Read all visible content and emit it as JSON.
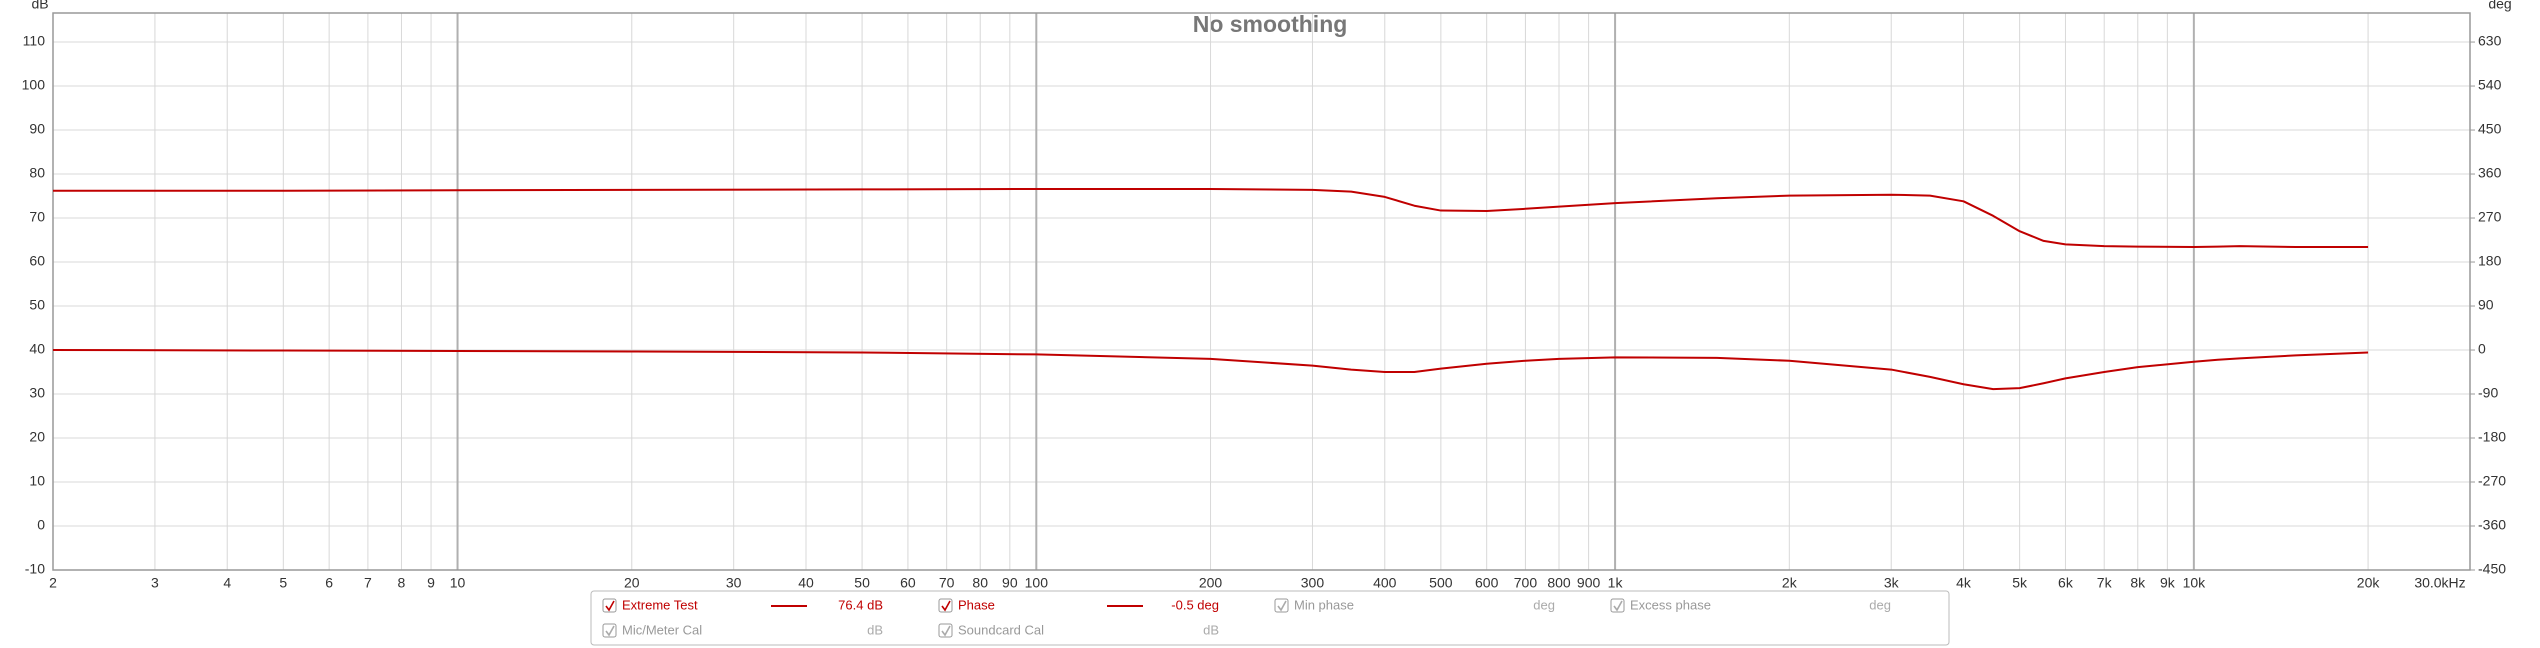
{
  "chart_data": {
    "type": "line",
    "title": "No smoothing",
    "y_label": "dB",
    "y2_label": "deg",
    "xscale": "log",
    "grid": true,
    "xlim": [
      2,
      30000
    ],
    "ylim": [
      -10,
      116.6
    ],
    "y2lim": [
      -450,
      689.4
    ],
    "xticks": [
      2,
      3,
      4,
      5,
      6,
      7,
      8,
      9,
      10,
      20,
      30,
      40,
      50,
      60,
      70,
      80,
      90,
      100,
      200,
      300,
      400,
      500,
      600,
      700,
      800,
      900,
      {
        "value": 1000,
        "label": "1k"
      },
      {
        "value": 2000,
        "label": "2k"
      },
      {
        "value": 3000,
        "label": "3k"
      },
      {
        "value": 4000,
        "label": "4k"
      },
      {
        "value": 5000,
        "label": "5k"
      },
      {
        "value": 6000,
        "label": "6k"
      },
      {
        "value": 7000,
        "label": "7k"
      },
      {
        "value": 8000,
        "label": "8k"
      },
      {
        "value": 9000,
        "label": "9k"
      },
      {
        "value": 10000,
        "label": "10k"
      },
      {
        "value": 20000,
        "label": "20k"
      },
      {
        "value": 30000,
        "label": "30.0kHz"
      }
    ],
    "yticks": [
      -10,
      0,
      10,
      20,
      30,
      40,
      50,
      60,
      70,
      80,
      90,
      100,
      110
    ],
    "y2ticks": [
      -450,
      -360,
      -270,
      -180,
      -90,
      0,
      90,
      180,
      270,
      360,
      450,
      540,
      630
    ],
    "x": [
      2,
      5,
      10,
      20,
      50,
      100,
      200,
      300,
      350,
      400,
      450,
      500,
      600,
      700,
      800,
      1000,
      1500,
      2000,
      3000,
      3500,
      4000,
      4500,
      5000,
      5500,
      6000,
      7000,
      8000,
      10000,
      11000,
      12000,
      15000,
      20000
    ],
    "series": [
      {
        "name": "Extreme Test",
        "color": "#c00000",
        "readout": "76.4 dB",
        "checked": true,
        "values": [
          76.2,
          76.2,
          76.3,
          76.4,
          76.5,
          76.6,
          76.6,
          76.4,
          76.0,
          74.8,
          72.8,
          71.7,
          71.6,
          72.1,
          72.6,
          73.4,
          74.5,
          75.1,
          75.3,
          75.1,
          73.8,
          70.5,
          67.0,
          64.8,
          64.0,
          63.6,
          63.5,
          63.4,
          63.5,
          63.6,
          63.4,
          63.4
        ]
      },
      {
        "name": "Phase",
        "color": "#c00000",
        "readout": "-0.5 deg",
        "checked": true,
        "axis": "y2",
        "values": [
          0,
          -1,
          -2,
          -3,
          -5,
          -9,
          -18,
          -32,
          -40,
          -45,
          -45,
          -38,
          -28,
          -22,
          -18,
          -15,
          -16,
          -22,
          -40,
          -55,
          -70,
          -80,
          -78,
          -68,
          -58,
          -45,
          -35,
          -24,
          -20,
          -17,
          -11,
          -5
        ]
      }
    ],
    "inactive_traces": [
      {
        "name": "Min phase",
        "unit": "deg"
      },
      {
        "name": "Excess phase",
        "unit": "deg"
      },
      {
        "name": "Mic/Meter Cal",
        "unit": "dB"
      },
      {
        "name": "Soundcard Cal",
        "unit": "dB"
      }
    ]
  }
}
